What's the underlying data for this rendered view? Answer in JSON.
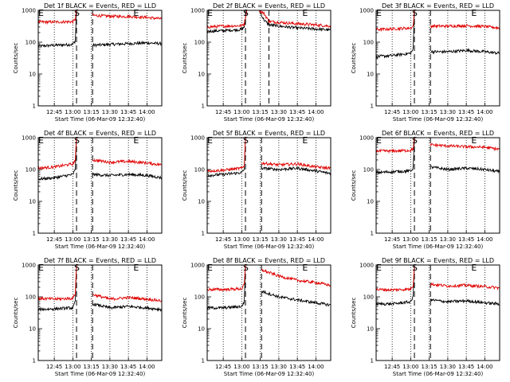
{
  "chart_data": [
    {
      "type": "line",
      "title": "Det 1f BLACK = Events, RED = LLD",
      "xlabel": "Start Time (06-Mar-09 12:32:40)",
      "ylabel": "Counts/sec",
      "yscale": "log",
      "ylim": [
        1,
        1000
      ],
      "xlim": [
        "12:32",
        "14:12"
      ],
      "x_ticks": [
        "12:45",
        "13:00",
        "13:15",
        "13:30",
        "13:45",
        "14:00"
      ],
      "y_ticks": [
        "1",
        "10",
        "100",
        "1000"
      ],
      "markers": [
        {
          "label": "E",
          "x": "12:32"
        },
        {
          "label": "S",
          "x": "13:01"
        },
        {
          "label": "E",
          "x": "13:49"
        }
      ],
      "dashed_lines": [
        "13:03",
        "13:16"
      ],
      "gap": [
        "13:03",
        "13:16"
      ],
      "series": [
        {
          "name": "BLACK",
          "color": "#000000",
          "x": [
            "12:32",
            "12:45",
            "13:00",
            "13:02",
            "13:03",
            "13:16",
            "13:30",
            "13:45",
            "14:00",
            "14:12"
          ],
          "values": [
            75,
            80,
            85,
            110,
            1000,
            80,
            85,
            90,
            95,
            90
          ]
        },
        {
          "name": "RED",
          "color": "#e00000",
          "x": [
            "12:32",
            "12:45",
            "13:00",
            "13:02",
            "13:03",
            "13:16",
            "13:30",
            "13:45",
            "14:00",
            "14:12"
          ],
          "values": [
            430,
            430,
            440,
            520,
            1000,
            700,
            650,
            640,
            600,
            540
          ]
        }
      ]
    },
    {
      "type": "line",
      "title": "Det 2f BLACK = Events, RED = LLD",
      "xlabel": "Start Time (06-Mar-09 12:32:40)",
      "ylabel": "Counts/sec",
      "yscale": "log",
      "ylim": [
        1,
        1000
      ],
      "xlim": [
        "12:32",
        "14:12"
      ],
      "x_ticks": [
        "12:45",
        "13:00",
        "13:15",
        "13:30",
        "13:45",
        "14:00"
      ],
      "y_ticks": [
        "1",
        "10",
        "100",
        "1000"
      ],
      "markers": [
        {
          "label": "E",
          "x": "12:32"
        },
        {
          "label": "S",
          "x": "13:01"
        },
        {
          "label": "E",
          "x": "13:49"
        }
      ],
      "dashed_lines": [
        "13:03",
        "13:22"
      ],
      "gap": [],
      "series": [
        {
          "name": "BLACK",
          "color": "#000000",
          "x": [
            "12:32",
            "12:45",
            "13:00",
            "13:02",
            "13:04",
            "13:14",
            "13:18",
            "13:22",
            "13:30",
            "13:45",
            "14:00",
            "14:12"
          ],
          "values": [
            220,
            230,
            250,
            300,
            1000,
            1000,
            500,
            350,
            320,
            280,
            260,
            240
          ]
        },
        {
          "name": "RED",
          "color": "#e00000",
          "x": [
            "12:32",
            "12:45",
            "13:00",
            "13:02",
            "13:04",
            "13:14",
            "13:18",
            "13:22",
            "13:30",
            "13:45",
            "14:00",
            "14:12"
          ],
          "values": [
            300,
            320,
            330,
            380,
            1000,
            1000,
            800,
            450,
            420,
            380,
            350,
            320
          ]
        }
      ]
    },
    {
      "type": "line",
      "title": "Det 3f BLACK = Events, RED = LLD",
      "xlabel": "Start Time (06-Mar-09 12:32:40)",
      "ylabel": "Counts/sec",
      "yscale": "log",
      "ylim": [
        1,
        1000
      ],
      "xlim": [
        "12:32",
        "14:12"
      ],
      "x_ticks": [
        "12:45",
        "13:00",
        "13:15",
        "13:30",
        "13:45",
        "14:00"
      ],
      "y_ticks": [
        "1",
        "10",
        "100",
        "1000"
      ],
      "markers": [
        {
          "label": "E",
          "x": "12:32"
        },
        {
          "label": "S",
          "x": "13:01"
        },
        {
          "label": "E",
          "x": "13:49"
        }
      ],
      "dashed_lines": [
        "13:03",
        "13:16"
      ],
      "gap": [
        "13:03",
        "13:16"
      ],
      "series": [
        {
          "name": "BLACK",
          "color": "#000000",
          "x": [
            "12:32",
            "12:45",
            "13:00",
            "13:02",
            "13:03",
            "13:16",
            "13:30",
            "13:45",
            "14:00",
            "14:12"
          ],
          "values": [
            35,
            38,
            45,
            60,
            1000,
            50,
            50,
            55,
            50,
            45
          ]
        },
        {
          "name": "RED",
          "color": "#e00000",
          "x": [
            "12:32",
            "12:45",
            "13:00",
            "13:02",
            "13:03",
            "13:16",
            "13:30",
            "13:45",
            "14:00",
            "14:12"
          ],
          "values": [
            250,
            260,
            280,
            320,
            1000,
            320,
            320,
            330,
            310,
            280
          ]
        }
      ]
    },
    {
      "type": "line",
      "title": "Det 4f BLACK = Events, RED = LLD",
      "xlabel": "Start Time (06-Mar-09 12:32:40)",
      "ylabel": "Counts/sec",
      "yscale": "log",
      "ylim": [
        1,
        1000
      ],
      "xlim": [
        "12:32",
        "14:12"
      ],
      "x_ticks": [
        "12:45",
        "13:00",
        "13:15",
        "13:30",
        "13:45",
        "14:00"
      ],
      "y_ticks": [
        "1",
        "10",
        "100",
        "1000"
      ],
      "markers": [
        {
          "label": "E",
          "x": "12:32"
        },
        {
          "label": "S",
          "x": "13:01"
        },
        {
          "label": "E",
          "x": "13:49"
        }
      ],
      "dashed_lines": [
        "13:03",
        "13:16"
      ],
      "gap": [
        "13:03",
        "13:16"
      ],
      "series": [
        {
          "name": "BLACK",
          "color": "#000000",
          "x": [
            "12:32",
            "12:45",
            "13:00",
            "13:02",
            "13:03",
            "13:16",
            "13:30",
            "13:45",
            "14:00",
            "14:12"
          ],
          "values": [
            50,
            55,
            70,
            100,
            1000,
            70,
            65,
            70,
            65,
            55
          ]
        },
        {
          "name": "RED",
          "color": "#e00000",
          "x": [
            "12:32",
            "12:45",
            "13:00",
            "13:02",
            "13:03",
            "13:16",
            "13:30",
            "13:45",
            "14:00",
            "14:12"
          ],
          "values": [
            110,
            120,
            150,
            200,
            1000,
            200,
            170,
            180,
            160,
            140
          ]
        }
      ]
    },
    {
      "type": "line",
      "title": "Det 5f BLACK = Events, RED = LLD",
      "xlabel": "Start Time (06-Mar-09 12:32:40)",
      "ylabel": "Counts/sec",
      "yscale": "log",
      "ylim": [
        1,
        1000
      ],
      "xlim": [
        "12:32",
        "14:12"
      ],
      "x_ticks": [
        "12:45",
        "13:00",
        "13:15",
        "13:30",
        "13:45",
        "14:00"
      ],
      "y_ticks": [
        "1",
        "10",
        "100",
        "1000"
      ],
      "markers": [
        {
          "label": "E",
          "x": "12:32"
        },
        {
          "label": "S",
          "x": "13:01"
        },
        {
          "label": "E",
          "x": "13:49"
        }
      ],
      "dashed_lines": [
        "13:03",
        "13:16"
      ],
      "gap": [
        "13:03",
        "13:16"
      ],
      "series": [
        {
          "name": "BLACK",
          "color": "#000000",
          "x": [
            "12:32",
            "12:45",
            "13:00",
            "13:02",
            "13:03",
            "13:16",
            "13:30",
            "13:45",
            "14:00",
            "14:12"
          ],
          "values": [
            65,
            70,
            80,
            100,
            1000,
            110,
            100,
            110,
            90,
            75
          ]
        },
        {
          "name": "RED",
          "color": "#e00000",
          "x": [
            "12:32",
            "12:45",
            "13:00",
            "13:02",
            "13:03",
            "13:16",
            "13:30",
            "13:45",
            "14:00",
            "14:12"
          ],
          "values": [
            90,
            95,
            110,
            130,
            1000,
            160,
            140,
            150,
            120,
            110
          ]
        }
      ]
    },
    {
      "type": "line",
      "title": "Det 6f BLACK = Events, RED = LLD",
      "xlabel": "Start Time (06-Mar-09 12:32:40)",
      "ylabel": "Counts/sec",
      "yscale": "log",
      "ylim": [
        1,
        1000
      ],
      "xlim": [
        "12:32",
        "14:12"
      ],
      "x_ticks": [
        "12:45",
        "13:00",
        "13:15",
        "13:30",
        "13:45",
        "14:00"
      ],
      "y_ticks": [
        "1",
        "10",
        "100",
        "1000"
      ],
      "markers": [
        {
          "label": "E",
          "x": "12:32"
        },
        {
          "label": "S",
          "x": "13:01"
        },
        {
          "label": "E",
          "x": "13:49"
        }
      ],
      "dashed_lines": [
        "13:03",
        "13:16"
      ],
      "gap": [
        "13:03",
        "13:16"
      ],
      "series": [
        {
          "name": "BLACK",
          "color": "#000000",
          "x": [
            "12:32",
            "12:45",
            "13:00",
            "13:02",
            "13:03",
            "13:16",
            "13:30",
            "13:45",
            "14:00",
            "14:12"
          ],
          "values": [
            80,
            85,
            90,
            110,
            1000,
            120,
            100,
            110,
            100,
            85
          ]
        },
        {
          "name": "RED",
          "color": "#e00000",
          "x": [
            "12:32",
            "12:45",
            "13:00",
            "13:02",
            "13:03",
            "13:16",
            "13:30",
            "13:45",
            "14:00",
            "14:12"
          ],
          "values": [
            380,
            380,
            400,
            450,
            1000,
            600,
            550,
            520,
            500,
            430
          ]
        }
      ]
    },
    {
      "type": "line",
      "title": "Det 7f BLACK = Events, RED = LLD",
      "xlabel": "Start Time (06-Mar-09 12:32:40)",
      "ylabel": "Counts/sec",
      "yscale": "log",
      "ylim": [
        1,
        1000
      ],
      "xlim": [
        "12:32",
        "14:12"
      ],
      "x_ticks": [
        "12:45",
        "13:00",
        "13:15",
        "13:30",
        "13:45",
        "14:00"
      ],
      "y_ticks": [
        "1",
        "10",
        "100",
        "1000"
      ],
      "markers": [
        {
          "label": "E",
          "x": "12:32"
        },
        {
          "label": "S",
          "x": "13:01"
        },
        {
          "label": "E",
          "x": "13:49"
        }
      ],
      "dashed_lines": [
        "13:03",
        "13:16"
      ],
      "gap": [
        "13:03",
        "13:16"
      ],
      "series": [
        {
          "name": "BLACK",
          "color": "#000000",
          "x": [
            "12:32",
            "12:45",
            "13:00",
            "13:02",
            "13:03",
            "13:16",
            "13:30",
            "13:45",
            "14:00",
            "14:12"
          ],
          "values": [
            40,
            42,
            45,
            70,
            1000,
            60,
            45,
            50,
            45,
            40
          ]
        },
        {
          "name": "RED",
          "color": "#e00000",
          "x": [
            "12:32",
            "12:45",
            "13:00",
            "13:02",
            "13:03",
            "13:16",
            "13:30",
            "13:45",
            "14:00",
            "14:12"
          ],
          "values": [
            90,
            85,
            90,
            130,
            1000,
            120,
            85,
            95,
            85,
            75
          ]
        }
      ]
    },
    {
      "type": "line",
      "title": "Det 8f BLACK = Events, RED = LLD",
      "xlabel": "Start Time (06-Mar-09 12:32:40)",
      "ylabel": "Counts/sec",
      "yscale": "log",
      "ylim": [
        1,
        1000
      ],
      "xlim": [
        "12:32",
        "14:12"
      ],
      "x_ticks": [
        "12:45",
        "13:00",
        "13:15",
        "13:30",
        "13:45",
        "14:00"
      ],
      "y_ticks": [
        "1",
        "10",
        "100",
        "1000"
      ],
      "markers": [
        {
          "label": "E",
          "x": "12:32"
        },
        {
          "label": "S",
          "x": "13:01"
        },
        {
          "label": "E",
          "x": "13:49"
        }
      ],
      "dashed_lines": [
        "13:03",
        "13:16"
      ],
      "gap": [
        "13:03",
        "13:16"
      ],
      "series": [
        {
          "name": "BLACK",
          "color": "#000000",
          "x": [
            "12:32",
            "12:45",
            "13:00",
            "13:02",
            "13:03",
            "13:16",
            "13:30",
            "13:45",
            "14:00",
            "14:12"
          ],
          "values": [
            45,
            45,
            50,
            70,
            1000,
            150,
            100,
            80,
            65,
            55
          ]
        },
        {
          "name": "RED",
          "color": "#e00000",
          "x": [
            "12:32",
            "12:45",
            "13:00",
            "13:02",
            "13:03",
            "13:16",
            "13:30",
            "13:45",
            "14:00",
            "14:12"
          ],
          "values": [
            170,
            170,
            180,
            240,
            1000,
            700,
            450,
            330,
            280,
            230
          ]
        }
      ]
    },
    {
      "type": "line",
      "title": "Det 9f BLACK = Events, RED = LLD",
      "xlabel": "Start Time (06-Mar-09 12:32:40)",
      "ylabel": "Counts/sec",
      "yscale": "log",
      "ylim": [
        1,
        1000
      ],
      "xlim": [
        "12:32",
        "14:12"
      ],
      "x_ticks": [
        "12:45",
        "13:00",
        "13:15",
        "13:30",
        "13:45",
        "14:00"
      ],
      "y_ticks": [
        "1",
        "10",
        "100",
        "1000"
      ],
      "markers": [
        {
          "label": "E",
          "x": "12:32"
        },
        {
          "label": "S",
          "x": "13:01"
        },
        {
          "label": "E",
          "x": "13:49"
        }
      ],
      "dashed_lines": [
        "13:03",
        "13:16"
      ],
      "gap": [
        "13:03",
        "13:16"
      ],
      "series": [
        {
          "name": "BLACK",
          "color": "#000000",
          "x": [
            "12:32",
            "12:45",
            "13:00",
            "13:02",
            "13:03",
            "13:16",
            "13:30",
            "13:45",
            "14:00",
            "14:12"
          ],
          "values": [
            60,
            60,
            70,
            100,
            1000,
            80,
            70,
            75,
            65,
            60
          ]
        },
        {
          "name": "RED",
          "color": "#e00000",
          "x": [
            "12:32",
            "12:45",
            "13:00",
            "13:02",
            "13:03",
            "13:16",
            "13:30",
            "13:45",
            "14:00",
            "14:12"
          ],
          "values": [
            170,
            165,
            175,
            230,
            1000,
            250,
            220,
            230,
            210,
            190
          ]
        }
      ]
    }
  ]
}
